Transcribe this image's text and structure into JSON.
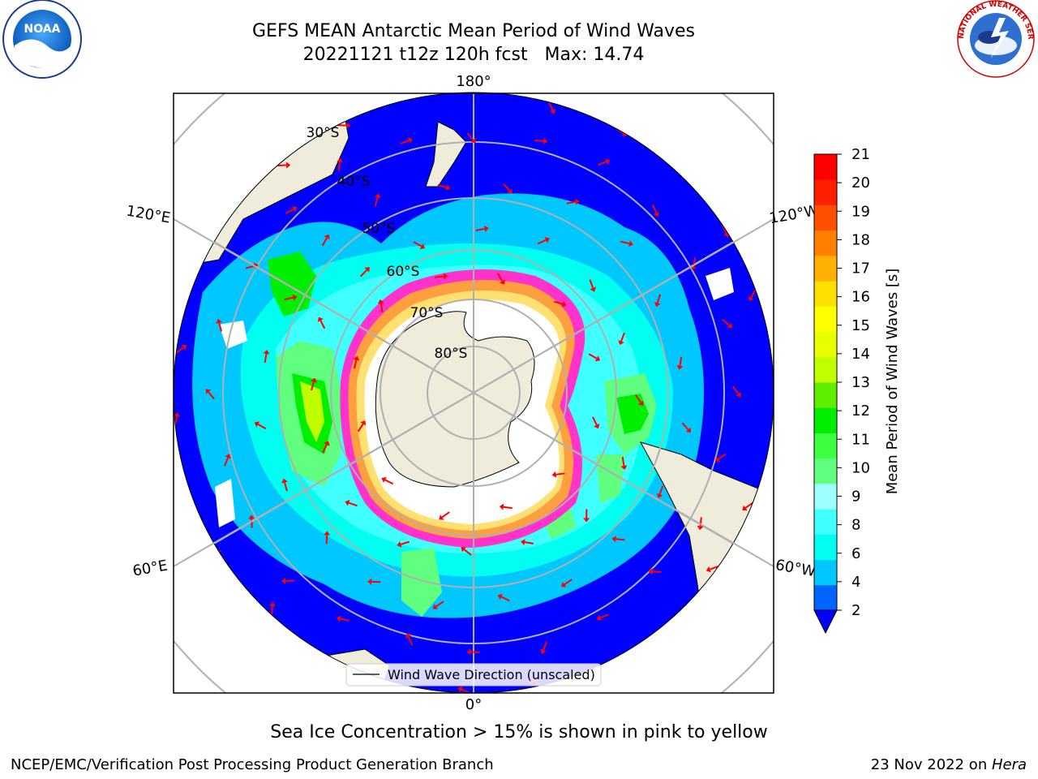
{
  "title": {
    "line1": "GEFS MEAN Antarctic Mean Period of Wind Waves",
    "line2": "20221121 t12z 120h fcst   Max: 14.74"
  },
  "map": {
    "projection": "south-polar-stereographic",
    "longitude_labels": {
      "top": "180°",
      "bottom": "0°",
      "left_upper": "120°E",
      "left_lower": "60°E",
      "right_upper": "120°W",
      "right_lower": "60°W"
    },
    "latitude_labels": [
      "30°S",
      "40°S",
      "50°S",
      "60°S",
      "70°S",
      "80°S"
    ],
    "legend_label": "Wind Wave Direction (unscaled)",
    "arrow_color": "#ff0000",
    "land_color": "#efecdc",
    "antarctica_color": "#ffffff",
    "sea_ice_colors": [
      "#ff33cc",
      "#ffa040",
      "#ffe070"
    ]
  },
  "colorbar": {
    "label": "Mean Period of Wind Waves [s]",
    "ticks": [
      "2",
      "4",
      "6",
      "8",
      "9",
      "10",
      "11",
      "12",
      "13",
      "14",
      "15",
      "16",
      "17",
      "18",
      "19",
      "20",
      "21"
    ],
    "colors": [
      "#0064ff",
      "#00c8ff",
      "#00fff0",
      "#40ffff",
      "#a0ffff",
      "#60ff80",
      "#40ff40",
      "#00ee00",
      "#60ee00",
      "#c0ff00",
      "#e8ff00",
      "#ffff00",
      "#ffe000",
      "#ffb000",
      "#ff8000",
      "#ff5000",
      "#ff2000",
      "#ff0000"
    ],
    "under_color": "#0000ff",
    "extend": "min"
  },
  "ice_note": "Sea Ice Concentration > 15% is shown in pink to yellow",
  "footer": {
    "left": "NCEP/EMC/Verification Post Processing Product Generation Branch",
    "right_date": "23 Nov 2022 on ",
    "right_host": "Hera"
  },
  "logos": {
    "noaa_text": "NOAA",
    "nws_text": "NATIONAL WEATHER SERVICE"
  }
}
